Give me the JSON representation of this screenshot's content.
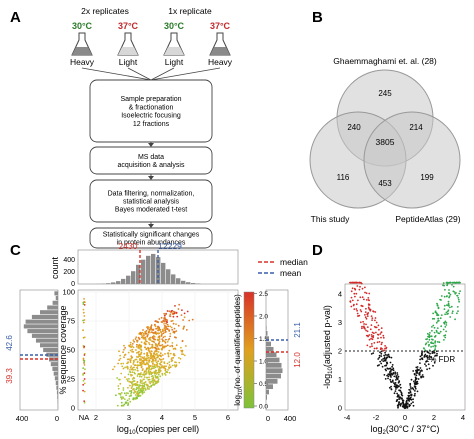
{
  "panels": {
    "A": "A",
    "B": "B",
    "C": "C",
    "D": "D"
  },
  "panelA": {
    "rep2": "2x replicates",
    "rep1": "1x replicate",
    "temps": [
      "30°C",
      "37°C",
      "30°C",
      "37°C"
    ],
    "isotopes": [
      "Heavy",
      "Light",
      "Light",
      "Heavy"
    ],
    "temp_colors": {
      "t30": "#2a7a2a",
      "t37": "#c0282a"
    },
    "steps": [
      [
        "Sample preparation",
        "& fractionation",
        "Isoelectric focusing",
        "12 fractions"
      ],
      [
        "MS data",
        "acquisition & analysis"
      ],
      [
        "Data filtering, normalization,",
        "statistical analysis",
        "Bayes moderated t-test"
      ],
      [
        "Statistically significant changes",
        "in protein abundances"
      ]
    ]
  },
  "panelB": {
    "labels": {
      "top": "Ghaemmaghami et. al. (28)",
      "left": "This study",
      "right": "PeptideAtlas (29)"
    },
    "counts": {
      "top_only": "245",
      "top_left": "240",
      "top_right": "214",
      "center": "3805",
      "left_only": "116",
      "left_right": "453",
      "right_only": "199"
    }
  },
  "panelC": {
    "top_hist": {
      "ylabel": "count",
      "yticks": [
        "0",
        "200",
        "400"
      ],
      "median_label": "2430",
      "mean_label": "12229",
      "bars": [
        2,
        5,
        12,
        25,
        45,
        80,
        130,
        200,
        300,
        380,
        440,
        470,
        420,
        330,
        230,
        150,
        90,
        50,
        28,
        15,
        8
      ]
    },
    "left_hist": {
      "xticks": [
        "400",
        "0"
      ],
      "median_label": "39.3",
      "mean_label": "42.6",
      "bars": [
        3,
        5,
        8,
        12,
        18,
        25,
        35,
        48,
        62,
        80,
        100,
        130,
        165,
        200,
        245,
        290,
        340,
        380,
        360,
        290,
        200,
        120,
        60,
        25,
        40
      ]
    },
    "scatter": {
      "ylabel": "% sequence coverage",
      "xlabel_pre": "log",
      "xlabel_sub": "10",
      "xlabel_post": "(copies per cell)",
      "xticks": [
        "NA",
        "2",
        "3",
        "4",
        "5",
        "6"
      ],
      "yticks": [
        "0",
        "25",
        "50",
        "75",
        "100"
      ]
    },
    "colorbar": {
      "label_pre": "log",
      "label_sub": "10",
      "label_post": "(no. of quantified peptides)",
      "ticks": [
        "0.0",
        "0.5",
        "1.0",
        "1.5",
        "2.0",
        "2.5"
      ],
      "top_color": "#d8322a",
      "mid_color": "#e0a020",
      "bottom_color": "#7ec23a"
    },
    "right_hist": {
      "median_label": "12.0",
      "mean_label": "21.1",
      "xticks": [
        "0",
        "400"
      ],
      "bars": [
        20,
        60,
        140,
        230,
        300,
        330,
        310,
        270,
        210,
        150,
        100,
        60,
        30,
        12,
        5
      ]
    },
    "legend": {
      "median": "median",
      "mean": "mean",
      "median_color": "#d8322a",
      "mean_color": "#3a5fa8"
    }
  },
  "panelD": {
    "ylabel_pre": "-log",
    "ylabel_sub": "10",
    "ylabel_post": "(adjusted p-val)",
    "xlabel_pre": "log",
    "xlabel_sub": "2",
    "xlabel_post": "(30°C / 37°C)",
    "xticks": [
      "-4",
      "-2",
      "0",
      "2",
      "4"
    ],
    "yticks": [
      "0",
      "1",
      "2",
      "3",
      "4"
    ],
    "fdr_label": "1% FDR",
    "colors": {
      "down": "#d42a2a",
      "up": "#2ea84a",
      "ns": "#111111"
    }
  }
}
